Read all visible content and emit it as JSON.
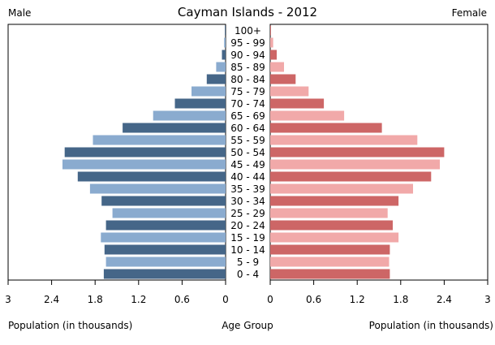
{
  "chart_data": {
    "type": "bar",
    "title": "Cayman Islands - 2012",
    "left_header": "Male",
    "right_header": "Female",
    "left_xlabel": "Population (in thousands)",
    "center_xlabel": "Age Group",
    "right_xlabel": "Population (in thousands)",
    "xlim": [
      0,
      3
    ],
    "male_ticks": [
      "3",
      "2.4",
      "1.8",
      "1.2",
      "0.6",
      "0"
    ],
    "female_ticks": [
      "0",
      "0.6",
      "1.2",
      "1.8",
      "2.4",
      "3"
    ],
    "categories": [
      "0 - 4",
      "5 - 9",
      "10 - 14",
      "15 - 19",
      "20 - 24",
      "25 - 29",
      "30 - 34",
      "35 - 39",
      "40 - 44",
      "45 - 49",
      "50 - 54",
      "55 - 59",
      "60 - 64",
      "65 - 69",
      "70 - 74",
      "75 - 79",
      "80 - 84",
      "85 - 89",
      "90 - 94",
      "95 - 99",
      "100+"
    ],
    "series": [
      {
        "name": "Male",
        "values": [
          1.68,
          1.65,
          1.67,
          1.72,
          1.65,
          1.56,
          1.71,
          1.87,
          2.04,
          2.25,
          2.22,
          1.83,
          1.42,
          1.0,
          0.7,
          0.47,
          0.26,
          0.13,
          0.05,
          0.02,
          0.01
        ]
      },
      {
        "name": "Female",
        "values": [
          1.65,
          1.64,
          1.65,
          1.77,
          1.69,
          1.62,
          1.77,
          1.97,
          2.22,
          2.34,
          2.4,
          2.03,
          1.54,
          1.02,
          0.74,
          0.53,
          0.35,
          0.19,
          0.09,
          0.04,
          0.01
        ]
      }
    ],
    "colors": {
      "male_dark": "#456688",
      "male_light": "#8aabcf",
      "female_dark": "#cd6666",
      "female_light": "#f1a9a9"
    }
  }
}
